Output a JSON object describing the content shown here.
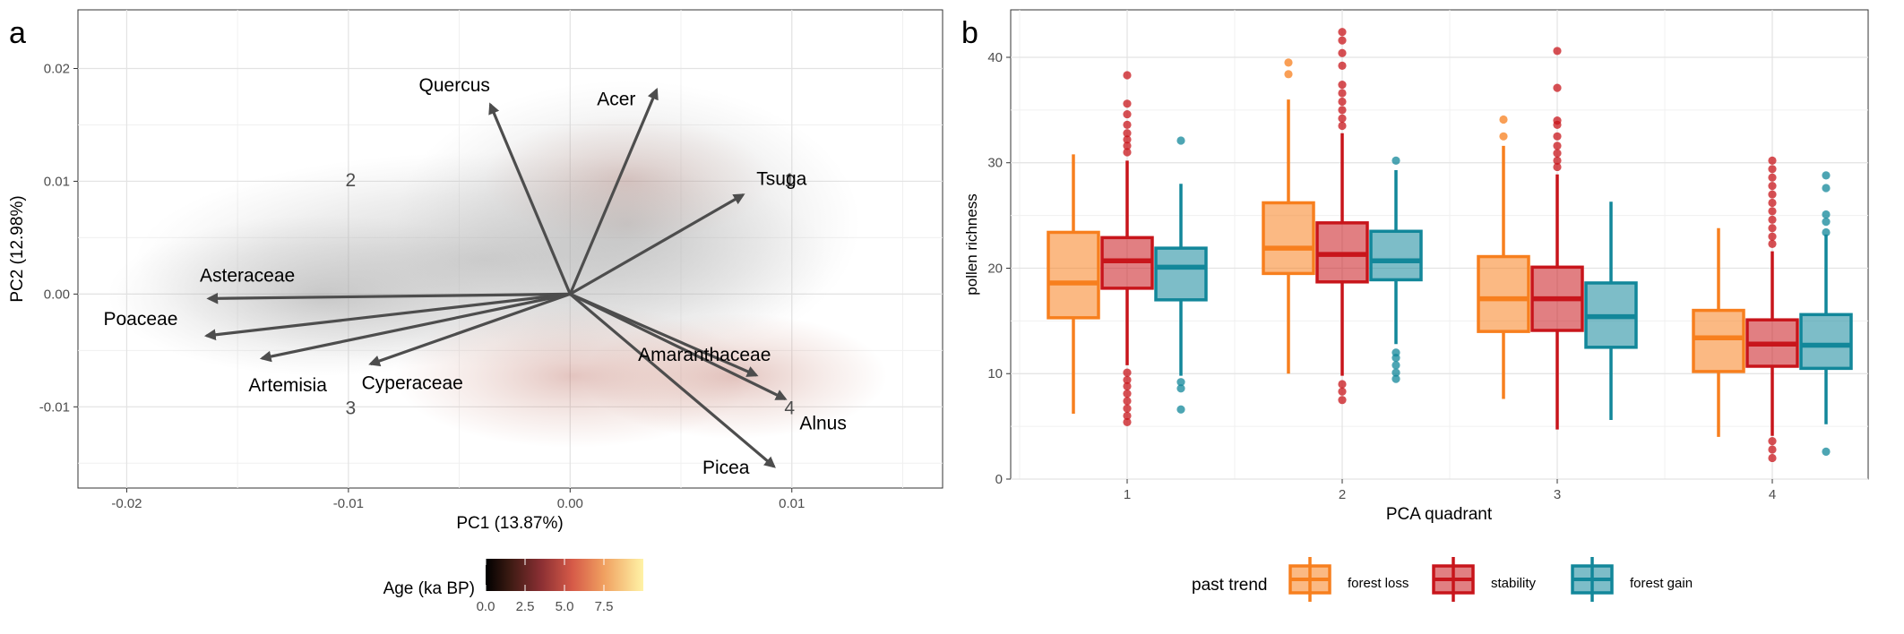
{
  "figure": {
    "panel_a_tag": "a",
    "panel_b_tag": "b"
  },
  "colors": {
    "forest_loss": "#f77f1e",
    "stability": "#c8151b",
    "forest_gain": "#12879a",
    "arrow": "#4d4d4d"
  },
  "chart_data": [
    {
      "type": "scatter",
      "subtype": "pca-biplot",
      "xlabel": "PC1 (13.87%)",
      "ylabel": "PC2 (12.98%)",
      "xlim": [
        -0.0222,
        0.0168
      ],
      "ylim": [
        -0.0172,
        0.0252
      ],
      "x_ticks": [
        -0.02,
        -0.01,
        0.0,
        0.01
      ],
      "x_tick_labels": [
        "-0.02",
        "-0.01",
        "0.00",
        "0.01"
      ],
      "y_ticks": [
        -0.01,
        0.0,
        0.01,
        0.02
      ],
      "y_tick_labels": [
        "-0.01",
        "0.00",
        "0.01",
        "0.02"
      ],
      "grid": true,
      "loadings": [
        {
          "name": "Quercus",
          "x": -0.0036,
          "y": 0.0168
        },
        {
          "name": "Acer",
          "x": 0.0039,
          "y": 0.0181
        },
        {
          "name": "Tsuga",
          "x": 0.0078,
          "y": 0.0088
        },
        {
          "name": "Asteraceae",
          "x": -0.0163,
          "y": -0.0004
        },
        {
          "name": "Poaceae",
          "x": -0.0164,
          "y": -0.0037
        },
        {
          "name": "Artemisia",
          "x": -0.0139,
          "y": -0.0057
        },
        {
          "name": "Cyperaceae",
          "x": -0.009,
          "y": -0.0062
        },
        {
          "name": "Amaranthaceae",
          "x": 0.0084,
          "y": -0.0072
        },
        {
          "name": "Alnus",
          "x": 0.0097,
          "y": -0.0093
        },
        {
          "name": "Picea",
          "x": 0.0092,
          "y": -0.0153
        }
      ],
      "quadrant_labels": [
        {
          "text": "1",
          "x": 0.0099,
          "y": 0.0101
        },
        {
          "text": "2",
          "x": -0.0099,
          "y": 0.0101
        },
        {
          "text": "3",
          "x": -0.0099,
          "y": -0.0101
        },
        {
          "text": "4",
          "x": 0.0099,
          "y": -0.0101
        }
      ],
      "colorbar": {
        "title": "Age (ka BP)",
        "ticks": [
          0.0,
          2.5,
          5.0,
          7.5
        ],
        "tick_labels": [
          "0.0",
          "2.5",
          "5.0",
          "7.5"
        ],
        "range": [
          0,
          10
        ]
      }
    },
    {
      "type": "box",
      "xlabel": "PCA quadrant",
      "ylabel": "pollen richness",
      "categories": [
        "1",
        "2",
        "3",
        "4"
      ],
      "ylim": [
        0,
        44.5
      ],
      "y_ticks": [
        0,
        10,
        20,
        30,
        40
      ],
      "grid": true,
      "legend": {
        "title": "past trend",
        "position": "bottom"
      },
      "series": [
        {
          "name": "forest loss",
          "color_key": "forest_loss",
          "boxes": [
            {
              "whisker_low": 6.2,
              "q1": 15.3,
              "median": 18.6,
              "q3": 23.4,
              "whisker_high": 30.8,
              "outliers": []
            },
            {
              "whisker_low": 10.0,
              "q1": 19.5,
              "median": 21.9,
              "q3": 26.2,
              "whisker_high": 36.0,
              "outliers": [
                38.4,
                39.5
              ]
            },
            {
              "whisker_low": 7.6,
              "q1": 14.0,
              "median": 17.1,
              "q3": 21.1,
              "whisker_high": 31.6,
              "outliers": [
                32.5,
                34.1
              ]
            },
            {
              "whisker_low": 4.0,
              "q1": 10.2,
              "median": 13.4,
              "q3": 16.0,
              "whisker_high": 23.8,
              "outliers": []
            }
          ]
        },
        {
          "name": "stability",
          "color_key": "stability",
          "boxes": [
            {
              "whisker_low": 10.8,
              "q1": 18.1,
              "median": 20.7,
              "q3": 22.9,
              "whisker_high": 30.2,
              "outliers": [
                5.4,
                6.0,
                6.7,
                7.4,
                8.1,
                8.8,
                9.4,
                10.1,
                31.0,
                31.6,
                32.2,
                32.8,
                33.6,
                34.6,
                35.6,
                38.3
              ]
            },
            {
              "whisker_low": 9.8,
              "q1": 18.7,
              "median": 21.3,
              "q3": 24.3,
              "whisker_high": 32.8,
              "outliers": [
                7.5,
                8.3,
                9.0,
                33.5,
                34.2,
                35.0,
                35.8,
                36.6,
                37.4,
                39.2,
                40.4,
                41.6,
                42.4
              ]
            },
            {
              "whisker_low": 4.7,
              "q1": 14.1,
              "median": 17.1,
              "q3": 20.1,
              "whisker_high": 28.9,
              "outliers": [
                29.6,
                30.2,
                30.9,
                31.6,
                32.5,
                33.6,
                34.0,
                37.1,
                40.6
              ]
            },
            {
              "whisker_low": 4.1,
              "q1": 10.7,
              "median": 12.8,
              "q3": 15.1,
              "whisker_high": 21.6,
              "outliers": [
                2.0,
                2.8,
                3.6,
                22.3,
                23.0,
                23.8,
                24.6,
                25.4,
                26.2,
                27.0,
                27.8,
                28.6,
                29.4,
                30.2
              ]
            }
          ]
        },
        {
          "name": "forest gain",
          "color_key": "forest_gain",
          "boxes": [
            {
              "whisker_low": 9.8,
              "q1": 17.0,
              "median": 20.1,
              "q3": 21.9,
              "whisker_high": 28.0,
              "outliers": [
                6.6,
                8.6,
                9.2,
                32.1
              ]
            },
            {
              "whisker_low": 12.8,
              "q1": 18.9,
              "median": 20.7,
              "q3": 23.5,
              "whisker_high": 29.3,
              "outliers": [
                9.5,
                10.1,
                10.8,
                11.5,
                12.0,
                30.2
              ]
            },
            {
              "whisker_low": 5.6,
              "q1": 12.5,
              "median": 15.4,
              "q3": 18.6,
              "whisker_high": 26.3,
              "outliers": []
            },
            {
              "whisker_low": 5.2,
              "q1": 10.5,
              "median": 12.7,
              "q3": 15.6,
              "whisker_high": 23.2,
              "outliers": [
                2.6,
                23.4,
                24.4,
                25.1,
                27.6,
                28.8
              ]
            }
          ]
        }
      ]
    }
  ]
}
